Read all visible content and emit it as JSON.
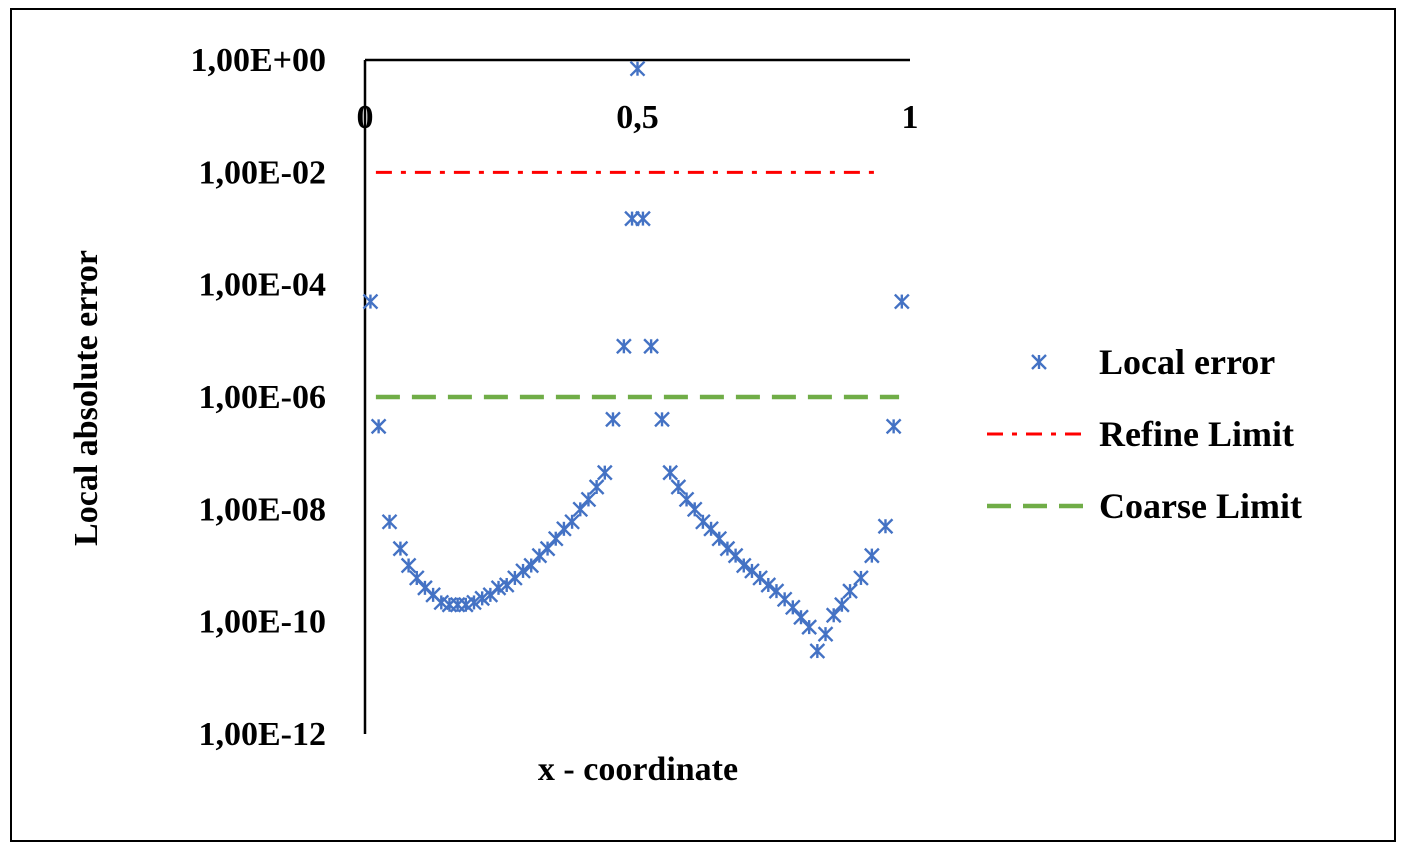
{
  "chart_data": {
    "type": "scatter",
    "xlabel": "x - coordinate",
    "ylabel": "Local absolute error",
    "xlim": [
      0,
      1
    ],
    "ylim_exponent": [
      -12,
      0
    ],
    "y_scale": "log",
    "x_ticks": [
      {
        "value": 0,
        "label": "0"
      },
      {
        "value": 0.5,
        "label": "0,5"
      },
      {
        "value": 1,
        "label": "1"
      }
    ],
    "y_ticks": [
      {
        "exp": 0,
        "label": "1,00E+00"
      },
      {
        "exp": -2,
        "label": "1,00E-02"
      },
      {
        "exp": -4,
        "label": "1,00E-04"
      },
      {
        "exp": -6,
        "label": "1,00E-06"
      },
      {
        "exp": -8,
        "label": "1,00E-08"
      },
      {
        "exp": -10,
        "label": "1,00E-10"
      },
      {
        "exp": -12,
        "label": "1,00E-12"
      }
    ],
    "x_axis_position": "top",
    "grid": false,
    "legend_position": "right",
    "series": [
      {
        "name": "Local error",
        "kind": "scatter",
        "marker": "asterisk",
        "color": "#4472C4",
        "points": [
          [
            0.01,
            5e-05
          ],
          [
            0.025,
            3e-07
          ],
          [
            0.045,
            6e-09
          ],
          [
            0.065,
            2e-09
          ],
          [
            0.08,
            1e-09
          ],
          [
            0.095,
            6e-10
          ],
          [
            0.11,
            4e-10
          ],
          [
            0.125,
            3e-10
          ],
          [
            0.14,
            2.2e-10
          ],
          [
            0.155,
            2e-10
          ],
          [
            0.17,
            2e-10
          ],
          [
            0.185,
            2e-10
          ],
          [
            0.2,
            2.2e-10
          ],
          [
            0.215,
            2.6e-10
          ],
          [
            0.23,
            3e-10
          ],
          [
            0.245,
            4e-10
          ],
          [
            0.26,
            4.5e-10
          ],
          [
            0.275,
            6e-10
          ],
          [
            0.29,
            8e-10
          ],
          [
            0.305,
            1e-09
          ],
          [
            0.32,
            1.5e-09
          ],
          [
            0.335,
            2e-09
          ],
          [
            0.35,
            3e-09
          ],
          [
            0.365,
            4.5e-09
          ],
          [
            0.38,
            6e-09
          ],
          [
            0.395,
            1e-08
          ],
          [
            0.41,
            1.5e-08
          ],
          [
            0.425,
            2.5e-08
          ],
          [
            0.44,
            4.5e-08
          ],
          [
            0.455,
            4e-07
          ],
          [
            0.475,
            8e-06
          ],
          [
            0.49,
            0.0015
          ],
          [
            0.5,
            0.7
          ],
          [
            0.51,
            0.0015
          ],
          [
            0.525,
            8e-06
          ],
          [
            0.545,
            4e-07
          ],
          [
            0.56,
            4.5e-08
          ],
          [
            0.575,
            2.5e-08
          ],
          [
            0.59,
            1.5e-08
          ],
          [
            0.605,
            1e-08
          ],
          [
            0.62,
            6e-09
          ],
          [
            0.635,
            4.5e-09
          ],
          [
            0.65,
            3e-09
          ],
          [
            0.665,
            2e-09
          ],
          [
            0.68,
            1.5e-09
          ],
          [
            0.695,
            1e-09
          ],
          [
            0.71,
            8e-10
          ],
          [
            0.725,
            6e-10
          ],
          [
            0.74,
            4.5e-10
          ],
          [
            0.755,
            3.5e-10
          ],
          [
            0.77,
            2.5e-10
          ],
          [
            0.785,
            1.8e-10
          ],
          [
            0.8,
            1.2e-10
          ],
          [
            0.815,
            8e-11
          ],
          [
            0.83,
            3e-11
          ],
          [
            0.845,
            6e-11
          ],
          [
            0.86,
            1.3e-10
          ],
          [
            0.875,
            2e-10
          ],
          [
            0.89,
            3.5e-10
          ],
          [
            0.91,
            6e-10
          ],
          [
            0.93,
            1.5e-09
          ],
          [
            0.955,
            5e-09
          ],
          [
            0.97,
            3e-07
          ],
          [
            0.985,
            5e-05
          ]
        ]
      },
      {
        "name": "Refine Limit",
        "kind": "line",
        "style": "dash-dot",
        "color": "#FF0000",
        "value": 0.01,
        "x_range": [
          0.02,
          0.95
        ]
      },
      {
        "name": "Coarse Limit",
        "kind": "line",
        "style": "dash",
        "color": "#70AD47",
        "value": 1e-06,
        "x_range": [
          0.02,
          0.98
        ]
      }
    ]
  }
}
